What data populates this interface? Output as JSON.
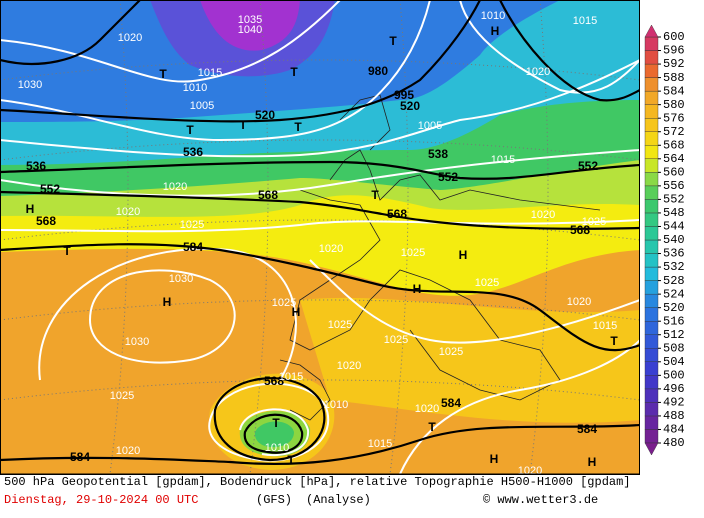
{
  "map_labels": [
    "1030",
    "1020",
    "T",
    "1015",
    "1010",
    "1005",
    "T",
    "T",
    "520",
    "T",
    "1040",
    "1035",
    "T",
    "980",
    "995",
    "520",
    "T",
    "1005",
    "538",
    "552",
    "1015",
    "552",
    "1020",
    "H",
    "536",
    "552",
    "536",
    "1020",
    "568",
    "H",
    "568",
    "568",
    "T",
    "1020",
    "1025",
    "584",
    "T",
    "1020",
    "1025",
    "H",
    "1020",
    "1025",
    "568",
    "1030",
    "H",
    "1030",
    "H",
    "1025",
    "1025",
    "H",
    "1025",
    "1020",
    "1025",
    "1025",
    "1015",
    "T",
    "1020",
    "1025",
    "568",
    "1015",
    "1010",
    "T",
    "1010",
    "T",
    "1020",
    "584",
    "1015",
    "1020",
    "584",
    "T",
    "584",
    "H",
    "H",
    "1020",
    "1010",
    "1015"
  ],
  "colorbar": {
    "ticks": [
      480,
      484,
      488,
      492,
      496,
      500,
      504,
      508,
      512,
      516,
      520,
      524,
      528,
      532,
      536,
      540,
      544,
      548,
      552,
      556,
      560,
      564,
      568,
      572,
      576,
      580,
      584,
      588,
      592,
      596,
      600
    ]
  },
  "footer": {
    "caption": "500 hPa Geopotential [gpdam], Bodendruck [hPa], relative Topographie H500-H1000 [gpdam]",
    "date": "Dienstag, 29-10-2024  00 UTC",
    "model": "(GFS)",
    "mode": "(Analyse)",
    "credit": "© www.wetter3.de"
  }
}
